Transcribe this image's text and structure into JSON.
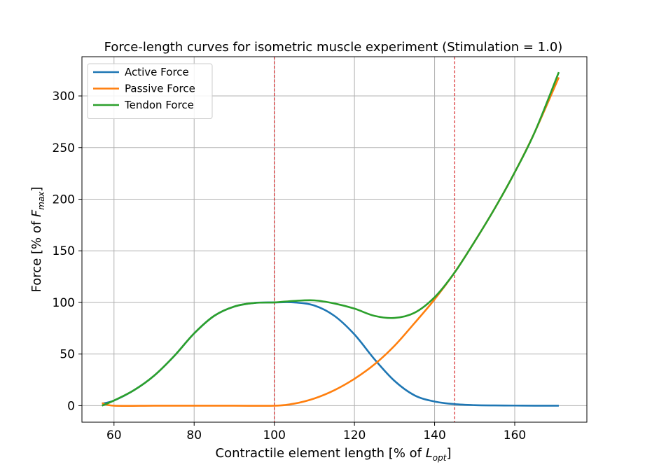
{
  "chart_data": {
    "type": "line",
    "title": "Force-length curves for isometric muscle experiment (Stimulation = 1.0)",
    "xlabel": {
      "prefix": "Contractile element length [% of ",
      "sym": "L",
      "sub": "opt",
      "suffix": "]"
    },
    "ylabel": {
      "prefix": "Force [% of ",
      "sym": "F",
      "sub": "max",
      "suffix": "]"
    },
    "xlim": [
      52,
      178
    ],
    "ylim": [
      -16,
      338
    ],
    "xticks": [
      60,
      80,
      100,
      120,
      140,
      160
    ],
    "yticks": [
      0,
      50,
      100,
      150,
      200,
      250,
      300
    ],
    "grid": true,
    "legend_position": "top-left",
    "vlines": [
      {
        "x": 100,
        "color": "#d62728",
        "style": "dashed"
      },
      {
        "x": 145,
        "color": "#d62728",
        "style": "dashed"
      }
    ],
    "series": [
      {
        "name": "Active Force",
        "color": "#1f77b4",
        "x": [
          57,
          60,
          65,
          70,
          75,
          80,
          85,
          90,
          95,
          100,
          105,
          110,
          115,
          120,
          125,
          130,
          135,
          140,
          145,
          150,
          155,
          160,
          165,
          171
        ],
        "y": [
          2,
          5,
          15,
          29,
          48,
          70,
          87,
          96,
          99.5,
          100,
          100,
          97,
          87,
          69,
          45,
          24,
          10,
          4,
          1.5,
          0.5,
          0.2,
          0.1,
          0,
          0
        ]
      },
      {
        "name": "Passive Force",
        "color": "#ff7f0e",
        "x": [
          57,
          60,
          70,
          80,
          90,
          100,
          105,
          110,
          115,
          120,
          125,
          130,
          135,
          140,
          145,
          150,
          155,
          160,
          165,
          171
        ],
        "y": [
          2.5,
          0,
          0,
          0,
          0,
          0,
          2,
          7,
          15,
          26,
          40,
          58,
          80,
          103,
          129,
          159,
          191,
          226,
          265,
          318
        ]
      },
      {
        "name": " Tendon Force",
        "color": "#2ca02c",
        "x": [
          57,
          60,
          65,
          70,
          75,
          80,
          85,
          90,
          95,
          100,
          105,
          110,
          115,
          120,
          125,
          130,
          135,
          140,
          145,
          150,
          155,
          160,
          165,
          171
        ],
        "y": [
          0,
          5,
          15,
          29,
          48,
          70,
          87,
          96,
          99.5,
          100,
          101.5,
          102,
          99,
          94,
          87,
          85,
          90,
          105,
          129,
          159,
          191,
          226,
          265,
          323
        ]
      }
    ]
  }
}
